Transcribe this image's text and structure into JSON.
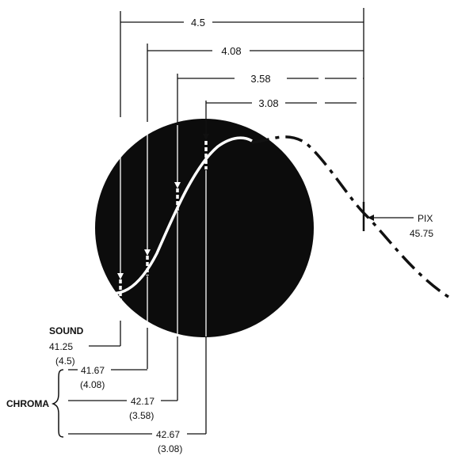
{
  "spacings": [
    "4.5",
    "4.08",
    "3.58",
    "3.08"
  ],
  "pix": {
    "label": "PIX",
    "value": "45.75"
  },
  "sound": {
    "label": "SOUND",
    "frequency": "41.25",
    "spacing": "(4.5)"
  },
  "chroma": {
    "label": "CHROMA",
    "items": [
      {
        "frequency": "41.67",
        "spacing": "(4.08)"
      },
      {
        "frequency": "42.17",
        "spacing": "(3.58)"
      },
      {
        "frequency": "42.67",
        "spacing": "(3.08)"
      }
    ]
  },
  "colors": {
    "ink": "#111111",
    "disc": "#0c0c0c",
    "curve": "#ffffff"
  }
}
